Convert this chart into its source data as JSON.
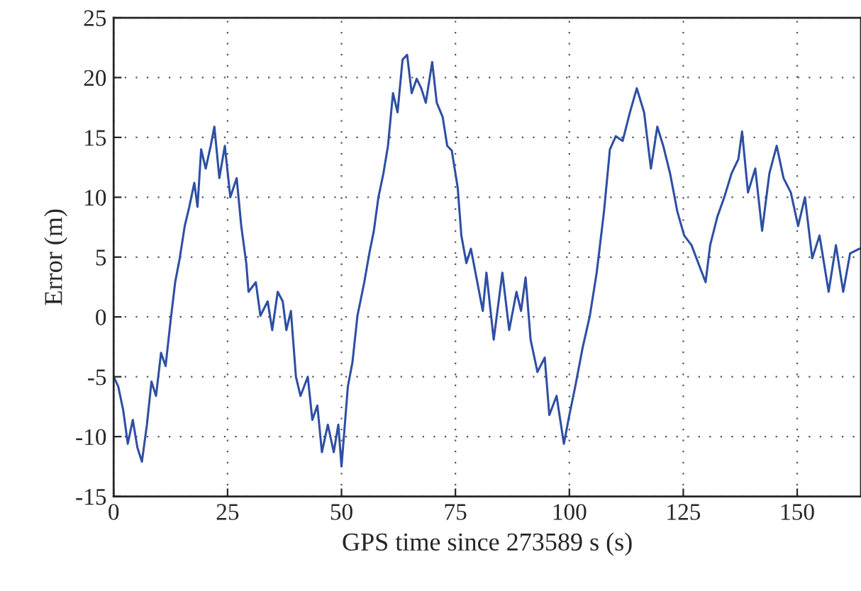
{
  "chart_data": {
    "type": "line",
    "xlabel": "GPS time since 273589 s (s)",
    "ylabel": "Error (m)",
    "xlim": [
      0,
      164
    ],
    "ylim": [
      -15,
      25
    ],
    "xticks": [
      0,
      25,
      50,
      75,
      100,
      125,
      150
    ],
    "yticks": [
      -15,
      -10,
      -5,
      0,
      5,
      10,
      15,
      20,
      25
    ],
    "grid": true,
    "line_style": "solid",
    "marker": "none",
    "series": [
      {
        "color": "#2e4fa3",
        "x": [
          0,
          1,
          2.1,
          3.1,
          4.2,
          5.2,
          6.2,
          7.3,
          8.3,
          9.3,
          10.4,
          11.4,
          12.5,
          13.5,
          14.5,
          15.6,
          16.6,
          17.7,
          18.4,
          19.2,
          20.2,
          21.3,
          22.1,
          23.2,
          24.4,
          25.6,
          27,
          28,
          29.1,
          29.6,
          31.2,
          32.2,
          33.8,
          34.8,
          36,
          37.1,
          37.9,
          38.9,
          40,
          41,
          42.6,
          43.6,
          44.7,
          45.7,
          47,
          48.3,
          49.3,
          50,
          51.4,
          52.4,
          53.5,
          55,
          56.1,
          57.1,
          58.1,
          59.2,
          60.2,
          61.3,
          62.3,
          63.4,
          64.4,
          65.4,
          66.5,
          67.5,
          68.5,
          69.9,
          70.9,
          72.2,
          73.2,
          74.2,
          75.5,
          76.3,
          77.4,
          78.4,
          79.4,
          81,
          81.8,
          83.4,
          85.3,
          86.8,
          88.4,
          89.4,
          90.4,
          91.5,
          93,
          94.6,
          95.6,
          97.2,
          98.8,
          100,
          101.3,
          102.9,
          104.5,
          106,
          107.6,
          108.9,
          110.2,
          111.7,
          113.3,
          114.8,
          116.4,
          117.9,
          119.3,
          120.6,
          122.1,
          123.7,
          125.2,
          126.8,
          128.3,
          129.9,
          130.9,
          132.5,
          134,
          135.6,
          137.1,
          137.9,
          139.2,
          140.8,
          142.3,
          143.9,
          145.5,
          147,
          148.6,
          150.2,
          151.7,
          153.3,
          154.9,
          156.9,
          158.5,
          160.1,
          161.6,
          163.7
        ],
        "values": [
          -5,
          -5.8,
          -7.8,
          -10.6,
          -8.6,
          -10.9,
          -12.1,
          -9,
          -5.4,
          -6.6,
          -3,
          -4.1,
          -0.3,
          2.9,
          4.9,
          7.6,
          9.2,
          11.2,
          9.2,
          14,
          12.4,
          14.3,
          15.9,
          11.6,
          14.3,
          10,
          11.6,
          7.6,
          4.5,
          2.1,
          2.9,
          0.1,
          1.3,
          -1.1,
          2.1,
          1.3,
          -1.1,
          0.5,
          -5,
          -6.6,
          -5,
          -8.6,
          -7.4,
          -11.3,
          -9,
          -11.3,
          -9,
          -12.5,
          -5.8,
          -3.8,
          0.1,
          2.9,
          5.3,
          7.2,
          10,
          12,
          14.3,
          18.7,
          17.1,
          21.5,
          21.9,
          18.7,
          19.9,
          19.1,
          17.9,
          21.3,
          17.9,
          16.7,
          14.3,
          13.9,
          10.8,
          6.8,
          4.5,
          5.7,
          3.7,
          0.5,
          3.7,
          -1.9,
          3.7,
          -1.1,
          2.1,
          0.5,
          3.3,
          -1.9,
          -4.6,
          -3.4,
          -8.2,
          -6.6,
          -10.6,
          -8.2,
          -5.8,
          -2.6,
          0.1,
          3.7,
          8.8,
          14,
          15.1,
          14.7,
          17.1,
          19.1,
          17.1,
          12.4,
          15.9,
          14.3,
          12,
          8.8,
          6.8,
          6,
          4.5,
          2.9,
          6,
          8.4,
          10,
          12,
          13.2,
          15.5,
          10.4,
          12.4,
          7.2,
          12,
          14.3,
          11.6,
          10.4,
          7.6,
          10,
          4.9,
          6.8,
          2.1,
          6,
          2.1,
          5.3,
          5.7
        ]
      }
    ]
  }
}
